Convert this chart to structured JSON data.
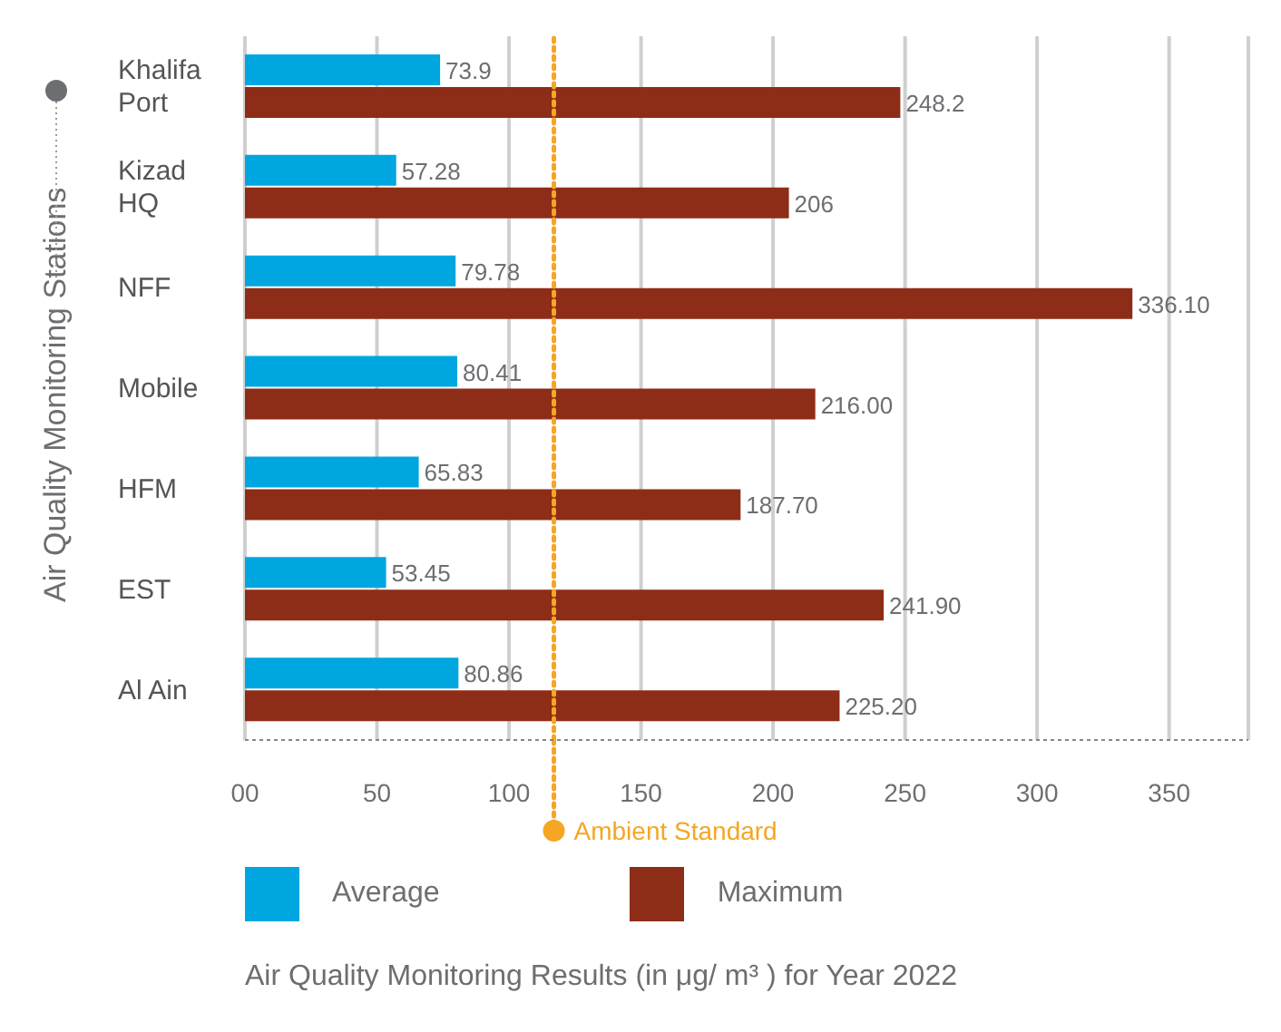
{
  "chart_data": {
    "type": "bar",
    "orientation": "horizontal",
    "ylabel": "Air Quality Monitoring Stations",
    "categories": [
      "Khalifa Port",
      "Kizad HQ",
      "NFF",
      "Mobile",
      "HFM",
      "EST",
      "Al Ain"
    ],
    "series": [
      {
        "name": "Average",
        "color": "#00a6e0",
        "values": [
          73.9,
          57.28,
          79.78,
          80.41,
          65.83,
          53.45,
          80.86
        ],
        "value_labels": [
          "73.9",
          "57.28",
          "79.78",
          "80.41",
          "65.83",
          "53.45",
          "80.86"
        ]
      },
      {
        "name": "Maximum",
        "color": "#8e2d17",
        "values": [
          248.2,
          206,
          336.1,
          216,
          187.7,
          241.9,
          225.2
        ],
        "value_labels": [
          "248.2",
          "206",
          "336.10",
          "216.00",
          "187.70",
          "241.90",
          "225.20"
        ]
      }
    ],
    "xlim": [
      0,
      380
    ],
    "xticks": [
      {
        "value": 0,
        "label": "00"
      },
      50,
      100,
      150,
      200,
      250,
      300,
      350
    ],
    "grid": "x",
    "legend": "bottom",
    "ref_lines": [
      {
        "axis": "x",
        "value": 117,
        "label": "Ambient Standard",
        "color": "#f5a623",
        "line_style": "dotted"
      }
    ],
    "annotations": [
      "Air Quality Monitoring Results (in μg/ m³ ) for Year 2022"
    ]
  }
}
